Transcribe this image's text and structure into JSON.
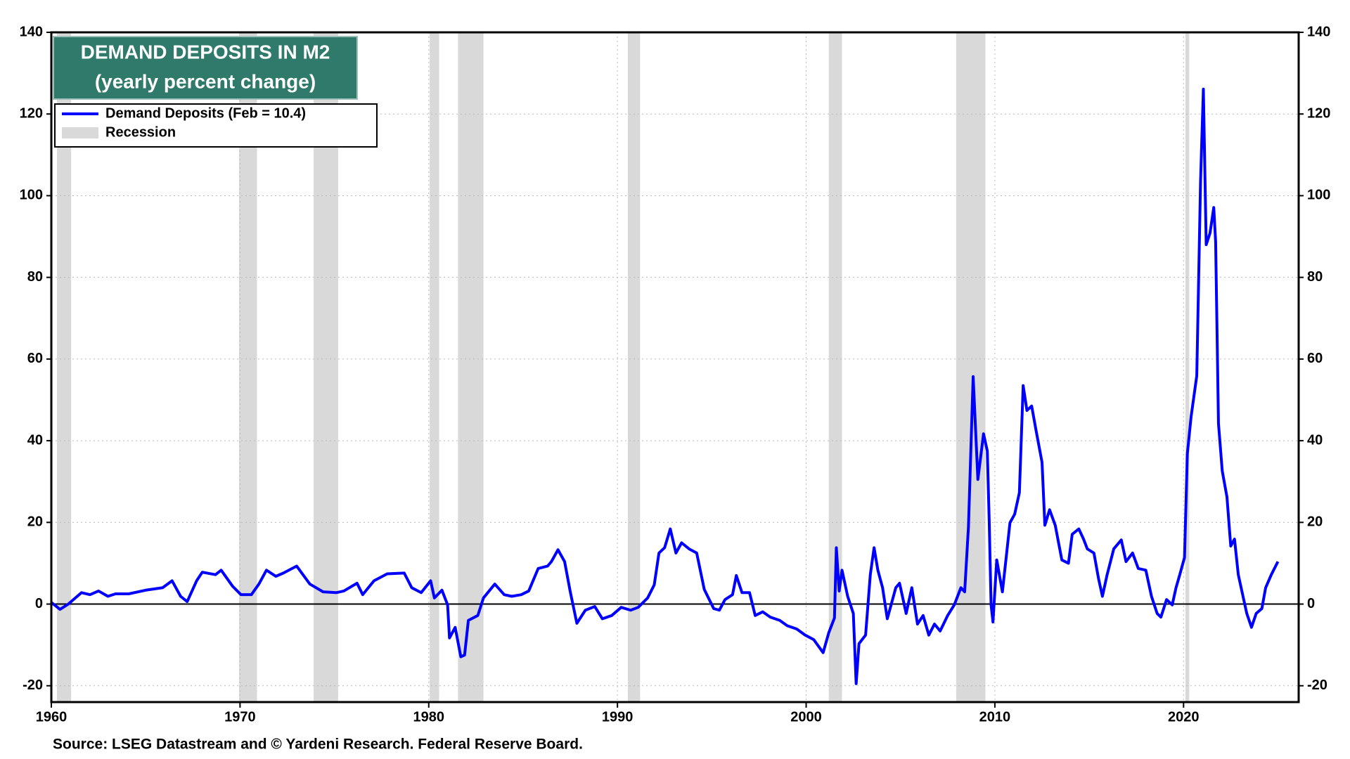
{
  "chart_data": {
    "type": "line",
    "title": "DEMAND DEPOSITS IN M2",
    "subtitle": "(yearly percent change)",
    "source": "Source: LSEG Datastream and © Yardeni Research. Federal Reserve Board.",
    "recession_label": "Recession",
    "recession_color": "#d9d9d9",
    "recessions": [
      [
        1960.3,
        1961.05
      ],
      [
        1969.95,
        1970.9
      ],
      [
        1973.9,
        1975.2
      ],
      [
        1980.05,
        1980.55
      ],
      [
        1981.55,
        1982.9
      ],
      [
        1990.55,
        1991.2
      ],
      [
        2001.2,
        2001.9
      ],
      [
        2007.95,
        2009.5
      ],
      [
        2020.1,
        2020.3
      ]
    ],
    "x": [
      1960.0,
      1960.46,
      1960.9,
      1961.6,
      1962.05,
      1962.5,
      1963.0,
      1963.4,
      1964.1,
      1965.0,
      1965.9,
      1966.4,
      1966.85,
      1967.2,
      1967.7,
      1968.0,
      1968.7,
      1969.0,
      1969.6,
      1970.05,
      1970.6,
      1971.0,
      1971.4,
      1971.9,
      1972.3,
      1973.0,
      1973.7,
      1974.4,
      1975.1,
      1975.5,
      1976.2,
      1976.5,
      1977.1,
      1977.8,
      1978.7,
      1979.1,
      1979.6,
      1980.1,
      1980.3,
      1980.7,
      1981.0,
      1981.1,
      1981.4,
      1981.7,
      1981.9,
      1982.1,
      1982.6,
      1982.9,
      1983.5,
      1984.0,
      1984.4,
      1984.9,
      1985.3,
      1985.8,
      1986.3,
      1986.5,
      1986.85,
      1987.2,
      1987.5,
      1987.85,
      1988.3,
      1988.8,
      1989.2,
      1989.7,
      1990.2,
      1990.7,
      1991.1,
      1991.6,
      1991.95,
      1992.2,
      1992.5,
      1992.8,
      1993.1,
      1993.4,
      1993.8,
      1994.2,
      1994.6,
      1995.1,
      1995.4,
      1995.7,
      1996.1,
      1996.3,
      1996.6,
      1997.0,
      1997.3,
      1997.7,
      1998.1,
      1998.6,
      1999.0,
      1999.5,
      1999.95,
      2000.4,
      2000.9,
      2001.2,
      2001.5,
      2001.6,
      2001.75,
      2001.9,
      2002.2,
      2002.5,
      2002.65,
      2002.8,
      2003.15,
      2003.4,
      2003.6,
      2003.8,
      2004.05,
      2004.3,
      2004.75,
      2004.95,
      2005.3,
      2005.6,
      2005.9,
      2006.2,
      2006.5,
      2006.8,
      2007.1,
      2007.5,
      2007.85,
      2008.2,
      2008.4,
      2008.6,
      2008.85,
      2009.1,
      2009.4,
      2009.6,
      2009.7,
      2009.8,
      2009.9,
      2010.1,
      2010.4,
      2010.6,
      2010.8,
      2011.05,
      2011.3,
      2011.5,
      2011.7,
      2011.95,
      2012.2,
      2012.5,
      2012.65,
      2012.9,
      2013.2,
      2013.55,
      2013.9,
      2014.1,
      2014.45,
      2014.7,
      2014.9,
      2015.25,
      2015.5,
      2015.7,
      2015.95,
      2016.3,
      2016.7,
      2016.95,
      2017.3,
      2017.6,
      2018.0,
      2018.3,
      2018.6,
      2018.8,
      2019.1,
      2019.4,
      2019.6,
      2019.8,
      2020.05,
      2020.2,
      2020.4,
      2020.7,
      2020.9,
      2021.05,
      2021.2,
      2021.4,
      2021.6,
      2021.7,
      2021.85,
      2022.05,
      2022.3,
      2022.5,
      2022.7,
      2022.9,
      2023.15,
      2023.35,
      2023.6,
      2023.85,
      2024.15,
      2024.35,
      2024.65,
      2025.0
    ],
    "series": [
      {
        "name": "Demand Deposits (Feb = 10.4)",
        "color": "#0000ff",
        "values": [
          0.4,
          -1.3,
          0,
          2.8,
          2.3,
          3.2,
          1.9,
          2.5,
          2.5,
          3.4,
          4,
          5.7,
          1.9,
          0.6,
          5.7,
          7.8,
          7.2,
          8.3,
          4.4,
          2.3,
          2.3,
          4.9,
          8.3,
          6.8,
          7.6,
          9.3,
          4.9,
          3.0,
          2.8,
          3.2,
          5.1,
          2.3,
          5.7,
          7.4,
          7.6,
          4,
          2.8,
          5.7,
          1.5,
          3.4,
          -0.2,
          -8.3,
          -5.7,
          -12.9,
          -12.5,
          -4,
          -2.8,
          1.5,
          4.9,
          2.3,
          1.9,
          2.3,
          3.2,
          8.7,
          9.3,
          10.4,
          13.3,
          10.4,
          3.0,
          -4.7,
          -1.5,
          -0.6,
          -3.6,
          -2.8,
          -0.8,
          -1.5,
          -0.8,
          1.5,
          4.7,
          12.5,
          13.8,
          18.4,
          12.5,
          15,
          13.5,
          12.5,
          3.6,
          -1.1,
          -1.5,
          1.1,
          2.3,
          7,
          2.8,
          2.8,
          -2.8,
          -1.9,
          -3.2,
          -4,
          -5.3,
          -6.1,
          -7.6,
          -8.7,
          -11.9,
          -7,
          -3.4,
          13.8,
          3.2,
          8.3,
          1.9,
          -2.3,
          -19.5,
          -9.7,
          -7.6,
          7.2,
          13.8,
          8.3,
          4,
          -3.6,
          4,
          5.1,
          -2.3,
          4,
          -4.9,
          -2.8,
          -7.6,
          -4.9,
          -6.6,
          -2.8,
          -0.2,
          4,
          3,
          18.8,
          55.7,
          30.5,
          41.7,
          37.5,
          20.5,
          -0.2,
          -4.4,
          10.8,
          3,
          11.4,
          19.9,
          22,
          27.3,
          53.5,
          47.4,
          48.5,
          42.1,
          34.7,
          19.3,
          23.1,
          19.3,
          10.8,
          10,
          17.1,
          18.4,
          15.9,
          13.5,
          12.5,
          6.1,
          1.9,
          7.2,
          13.5,
          15.7,
          10.4,
          12.5,
          8.7,
          8.3,
          1.9,
          -2.3,
          -3.2,
          1.1,
          -0.2,
          4,
          7.2,
          11.4,
          36.8,
          45.9,
          55.9,
          103.5,
          126.1,
          88,
          90.8,
          97.1,
          88.7,
          44.2,
          32.6,
          26.2,
          14.2,
          15.9,
          7.2,
          1.9,
          -2.3,
          -5.7,
          -2.3,
          -1.1,
          4,
          7.2,
          10.4
        ]
      }
    ],
    "xlim": [
      1960,
      2026.1
    ],
    "xticks": [
      1960,
      1970,
      1980,
      1990,
      2000,
      2010,
      2020
    ],
    "ylim": [
      -24,
      140
    ],
    "yticks": [
      -20,
      0,
      20,
      40,
      60,
      80,
      100,
      120,
      140
    ],
    "y2lim": [
      -24,
      140
    ],
    "y2ticks": [
      -20,
      0,
      20,
      40,
      60,
      80,
      100,
      120,
      140
    ],
    "grid": true
  }
}
